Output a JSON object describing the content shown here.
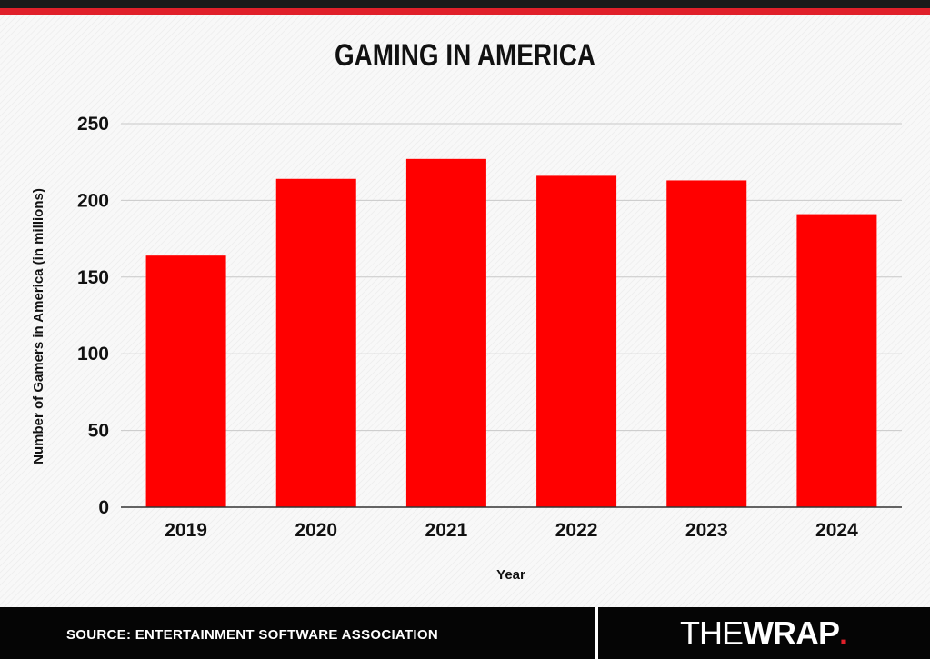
{
  "header": {
    "title": "GAMING IN AMERICA"
  },
  "colors": {
    "bar": "#ff0000",
    "accent": "#e0202a",
    "footer_bg": "#050505"
  },
  "footer": {
    "source": "SOURCE: ENTERTAINMENT SOFTWARE ASSOCIATION",
    "logo_the": "THE",
    "logo_wrap": "WRAP",
    "logo_dot": "."
  },
  "chart_data": {
    "type": "bar",
    "title": "GAMING IN AMERICA",
    "xlabel": "Year",
    "ylabel": "Number of Gamers in America (in millions)",
    "categories": [
      "2019",
      "2020",
      "2021",
      "2022",
      "2023",
      "2024"
    ],
    "values": [
      164,
      214,
      227,
      216,
      213,
      191
    ],
    "ylim": [
      0,
      250
    ],
    "yticks": [
      0,
      50,
      100,
      150,
      200,
      250
    ],
    "grid": true,
    "legend": "none"
  }
}
